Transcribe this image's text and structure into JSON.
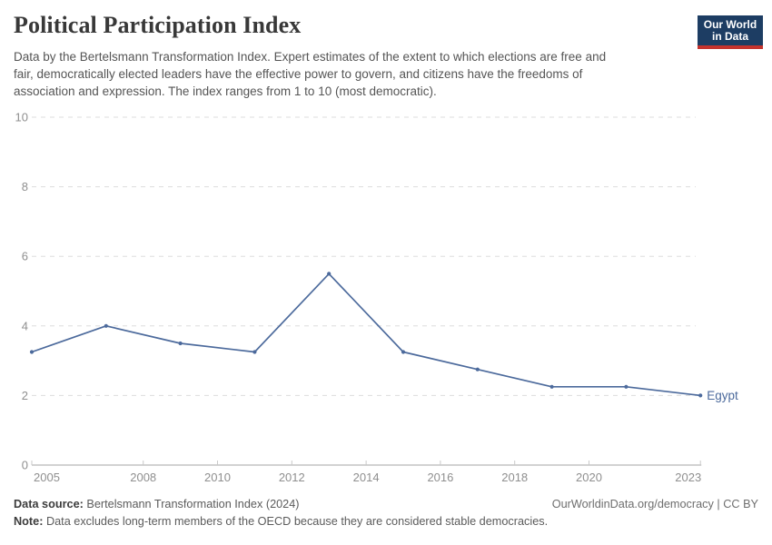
{
  "header": {
    "title": "Political Participation Index",
    "subtitle": "Data by the Bertelsmann Transformation Index. Expert estimates of the extent to which elections are free and\nfair, democratically elected leaders have the effective power to govern, and citizens have the freedoms of\nassociation and expression. The index ranges from 1 to 10 (most democratic).",
    "logo": {
      "line1": "Our World",
      "line2": "in Data",
      "bg_color": "#1d3d63",
      "accent_color": "#c5332d"
    }
  },
  "chart_data": {
    "type": "line",
    "title": "Political Participation Index",
    "x": [
      2005,
      2007,
      2009,
      2011,
      2013,
      2015,
      2017,
      2019,
      2021,
      2023
    ],
    "series": [
      {
        "name": "Egypt",
        "values": [
          3.25,
          4,
          3.5,
          3.25,
          5.5,
          3.25,
          2.75,
          2.25,
          2.25,
          2
        ],
        "color": "#4c6a9c"
      }
    ],
    "end_label": "Egypt",
    "x_ticks": [
      2005,
      2008,
      2010,
      2012,
      2014,
      2016,
      2018,
      2020,
      2023
    ],
    "y_ticks": [
      0,
      2,
      4,
      6,
      8,
      10
    ],
    "xlim": [
      2005,
      2023
    ],
    "ylim": [
      0,
      10
    ],
    "xlabel": "",
    "ylabel": "",
    "grid": "horizontal-dashed",
    "legend_position": "line-end-label",
    "colors": {
      "gridline": "#dddddd",
      "axis_line": "#a6a6a6",
      "tick_mark": "#c9c9c9",
      "tick_label": "#8f8f8f"
    }
  },
  "footer": {
    "source_label": "Data source:",
    "source_text": "Bertelsmann Transformation Index (2024)",
    "credit": "OurWorldinData.org/democracy | CC BY",
    "note_label": "Note:",
    "note_text": "Data excludes long-term members of the OECD because they are considered stable democracies."
  }
}
